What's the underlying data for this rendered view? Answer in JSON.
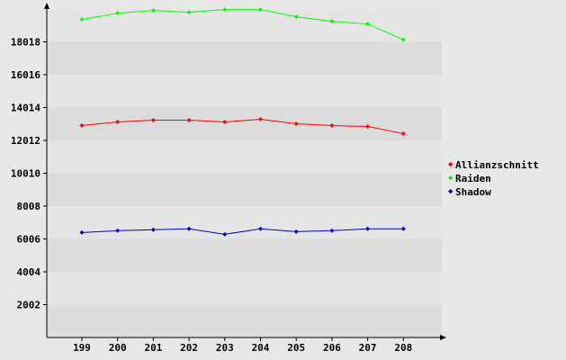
{
  "chart_data": {
    "type": "line",
    "title": "",
    "xlabel": "",
    "ylabel": "",
    "x": [
      "199",
      "200",
      "201",
      "202",
      "203",
      "204",
      "205",
      "206",
      "207",
      "208"
    ],
    "y_ticks": [
      "2002",
      "4004",
      "6006",
      "8008",
      "10010",
      "12012",
      "14014",
      "16016",
      "18018"
    ],
    "ylim": [
      0,
      20020
    ],
    "grid": "horizontal bands",
    "legend_position": "right",
    "series": [
      {
        "name": "Allianzschnitt",
        "color": "#ff0000",
        "values": [
          12915,
          13135,
          13245,
          13245,
          13135,
          13300,
          13025,
          12915,
          12860,
          12420
        ]
      },
      {
        "name": "Raiden",
        "color": "#00ff00",
        "values": [
          19380,
          19765,
          19930,
          19820,
          19985,
          19985,
          19545,
          19270,
          19105,
          18150
        ]
      },
      {
        "name": "Shadow",
        "color": "#0000cc",
        "values": [
          6400,
          6510,
          6565,
          6620,
          6290,
          6620,
          6455,
          6510,
          6620,
          6620
        ]
      }
    ]
  }
}
